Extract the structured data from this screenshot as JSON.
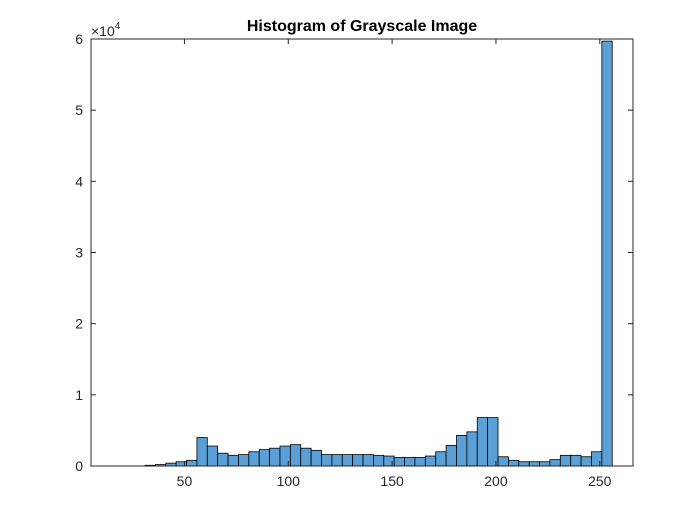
{
  "chart_data": {
    "type": "bar",
    "title": "Histogram of Grayscale Image",
    "xlabel": "",
    "ylabel": "",
    "xlim": [
      5,
      266
    ],
    "ylim": [
      0,
      60000
    ],
    "y_multiplier_label": {
      "base": "×10",
      "exponent": "4"
    },
    "x_ticks": [
      50,
      100,
      150,
      200,
      250
    ],
    "x_tick_labels": [
      "50",
      "100",
      "150",
      "200",
      "250"
    ],
    "y_ticks": [
      0,
      10000,
      20000,
      30000,
      40000,
      50000,
      60000
    ],
    "y_tick_labels": [
      "0",
      "1",
      "2",
      "3",
      "4",
      "5",
      "6"
    ],
    "bin_width": 5,
    "bin_edges_start": 31,
    "values": [
      100,
      200,
      400,
      600,
      800,
      4000,
      2800,
      1800,
      1500,
      1600,
      2000,
      2300,
      2500,
      2800,
      3000,
      2500,
      2200,
      1600,
      1600,
      1600,
      1600,
      1600,
      1500,
      1400,
      1200,
      1200,
      1200,
      1400,
      2000,
      2900,
      4300,
      4800,
      6800,
      6800,
      1300,
      800,
      600,
      600,
      600,
      900,
      1500,
      1500,
      1300,
      2000,
      59700
    ],
    "grid": false,
    "bar_color": "#5aa0d6",
    "bar_edge_color": "#000000"
  }
}
